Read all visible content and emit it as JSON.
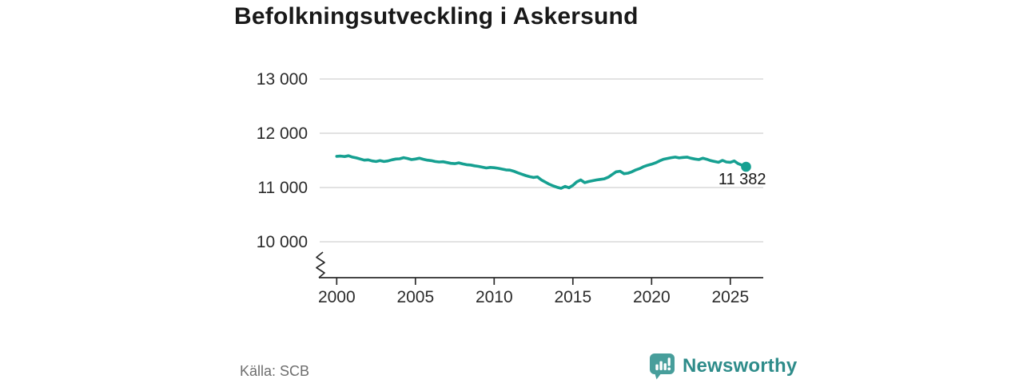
{
  "header": {
    "title": "Befolkningsutveckling i Askersund"
  },
  "footer": {
    "source": "Källa: SCB",
    "brand": "Newsworthy"
  },
  "colors": {
    "line": "#16a091",
    "grid": "#e2e2e2",
    "axis": "#2b2b2b",
    "tick_text": "#2b2b2b",
    "title_text": "#191919",
    "muted_text": "#6e6e6e",
    "brand_text": "#2e8c8a",
    "brand_icon": "#479e9b"
  },
  "chart_data": {
    "type": "line",
    "title": "Befolkningsutveckling i Askersund",
    "x_start": 2000,
    "x_step_years": 0.25,
    "x_end": 2026,
    "values": [
      11575,
      11580,
      11570,
      11585,
      11560,
      11545,
      11525,
      11505,
      11510,
      11490,
      11480,
      11495,
      11480,
      11490,
      11510,
      11525,
      11530,
      11550,
      11535,
      11515,
      11525,
      11540,
      11520,
      11505,
      11495,
      11480,
      11470,
      11475,
      11460,
      11445,
      11440,
      11455,
      11435,
      11420,
      11415,
      11400,
      11390,
      11375,
      11360,
      11370,
      11365,
      11355,
      11340,
      11325,
      11320,
      11300,
      11270,
      11245,
      11220,
      11200,
      11185,
      11195,
      11140,
      11100,
      11060,
      11030,
      11005,
      10985,
      11020,
      10995,
      11040,
      11105,
      11140,
      11090,
      11110,
      11125,
      11140,
      11150,
      11160,
      11190,
      11240,
      11290,
      11300,
      11255,
      11265,
      11290,
      11325,
      11350,
      11385,
      11410,
      11430,
      11455,
      11490,
      11520,
      11535,
      11550,
      11560,
      11545,
      11555,
      11560,
      11540,
      11525,
      11515,
      11540,
      11520,
      11495,
      11480,
      11465,
      11500,
      11470,
      11465,
      11490,
      11440,
      11410,
      11382
    ],
    "end_value": 11382,
    "end_label": "11 382",
    "xticks": [
      {
        "value": 2000,
        "label": "2000"
      },
      {
        "value": 2005,
        "label": "2005"
      },
      {
        "value": 2010,
        "label": "2010"
      },
      {
        "value": 2015,
        "label": "2015"
      },
      {
        "value": 2020,
        "label": "2020"
      },
      {
        "value": 2025,
        "label": "2025"
      }
    ],
    "yticks": [
      {
        "value": 13000,
        "label": "13 000"
      },
      {
        "value": 12000,
        "label": "12 000"
      },
      {
        "value": 11000,
        "label": "11 000"
      },
      {
        "value": 10000,
        "label": "10 000"
      }
    ],
    "ylim": [
      9800,
      13000
    ],
    "xlim": [
      1999.5,
      2027.2
    ],
    "grid": "horizontal",
    "axis_break": true,
    "legend": "none"
  }
}
